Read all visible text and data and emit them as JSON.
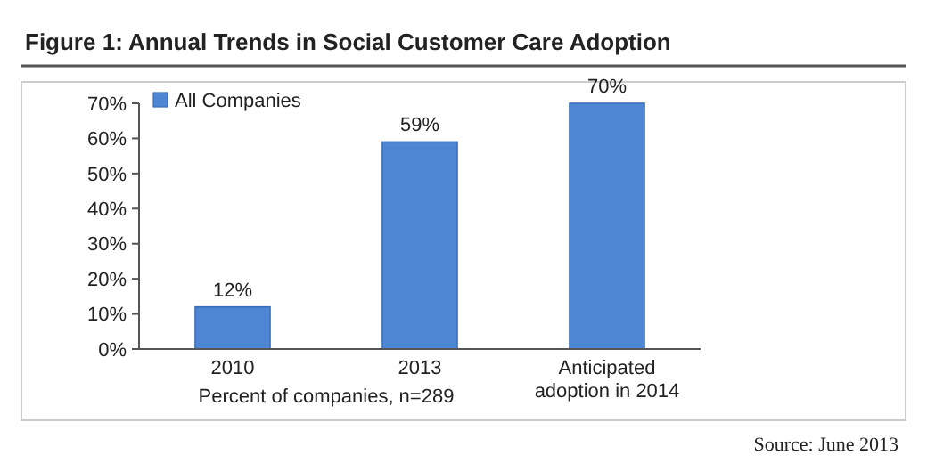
{
  "chart_data": {
    "type": "bar",
    "title": "Figure 1: Annual Trends in Social Customer Care Adoption",
    "categories": [
      "2010",
      "2013",
      "Anticipated adoption in 2014"
    ],
    "series": [
      {
        "name": "All Companies",
        "color": "#4f86d4",
        "values": [
          12,
          59,
          70
        ]
      }
    ],
    "value_labels": [
      "12%",
      "59%",
      "70%"
    ],
    "ylim": [
      0,
      70
    ],
    "yticks": [
      {
        "value": 0,
        "label": "0%"
      },
      {
        "value": 10,
        "label": "10%"
      },
      {
        "value": 20,
        "label": "20%"
      },
      {
        "value": 30,
        "label": "30%"
      },
      {
        "value": 40,
        "label": "40%"
      },
      {
        "value": 50,
        "label": "50%"
      },
      {
        "value": 60,
        "label": "60%"
      },
      {
        "value": 70,
        "label": "70%"
      }
    ],
    "xlabel": "Percent of companies, n=289",
    "annotations": [
      "Source: June 2013"
    ],
    "legend": "top left",
    "grid": false
  }
}
